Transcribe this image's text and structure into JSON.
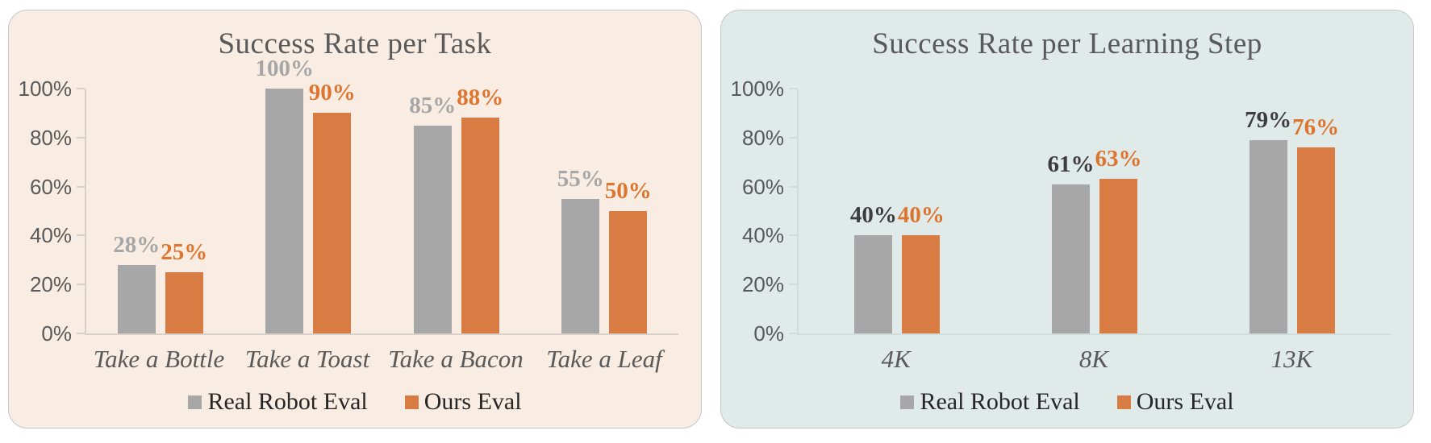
{
  "page": {
    "background": "#ffffff"
  },
  "chart_data": [
    {
      "type": "bar",
      "title": "Success Rate per Task",
      "categories": [
        "Take a Bottle",
        "Take a Toast",
        "Take a Bacon",
        "Take a Leaf"
      ],
      "series": [
        {
          "name": "Real Robot Eval",
          "values": [
            28,
            100,
            85,
            55
          ],
          "color": "#A7A7A7",
          "label_color": "#A6A6A6"
        },
        {
          "name": "Ours Eval",
          "values": [
            25,
            90,
            88,
            50
          ],
          "color": "#D97C44",
          "label_color": "#DD752E"
        }
      ],
      "value_suffix": "%",
      "xlabel": "",
      "ylabel": "",
      "ylim": [
        0,
        100
      ],
      "yticks": [
        "0%",
        "20%",
        "40%",
        "60%",
        "80%",
        "100%"
      ],
      "grid": false,
      "legend_position": "bottom",
      "panel_background": "#F9ECE3",
      "axis_color": "#D8D1C9",
      "title_color": "#595959",
      "tick_label_color": "#595959",
      "category_label_color": "#595959",
      "legend_text_color": "#262626"
    },
    {
      "type": "bar",
      "title": "Success Rate per Learning Step",
      "categories": [
        "4K",
        "8K",
        "13K"
      ],
      "series": [
        {
          "name": "Real Robot Eval",
          "values": [
            40,
            61,
            79
          ],
          "color": "#A7A7A7",
          "label_color": "#3D3D3D"
        },
        {
          "name": "Ours Eval",
          "values": [
            40,
            63,
            76
          ],
          "color": "#D97C44",
          "label_color": "#DD752E"
        }
      ],
      "value_suffix": "%",
      "xlabel": "",
      "ylabel": "",
      "ylim": [
        0,
        100
      ],
      "yticks": [
        "0%",
        "20%",
        "40%",
        "60%",
        "80%",
        "100%"
      ],
      "grid": false,
      "legend_position": "bottom",
      "panel_background": "#E0EAE8",
      "axis_color": "#D2DDDB",
      "title_color": "#595959",
      "tick_label_color": "#595959",
      "category_label_color": "#595959",
      "legend_text_color": "#262626"
    }
  ]
}
